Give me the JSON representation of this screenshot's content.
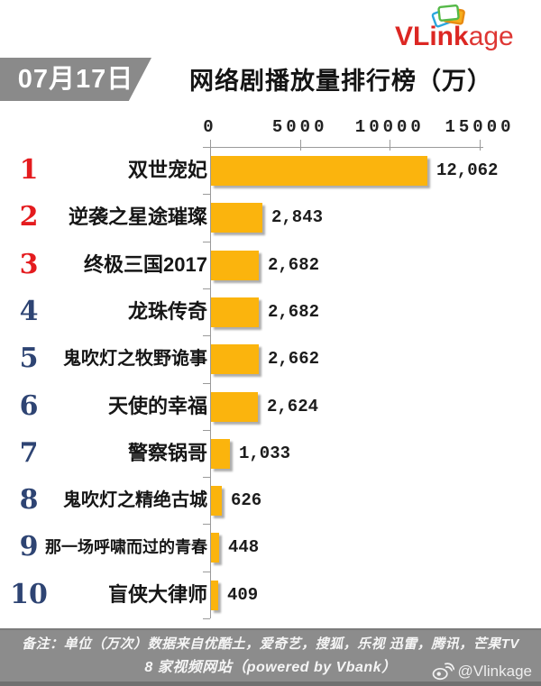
{
  "header": {
    "logo": {
      "brand_bold": "VLink",
      "brand_light": "age",
      "icon": "stacked-cards-icon",
      "brand_color": "#DC2723"
    },
    "date_badge": "07月17日",
    "title": "网络剧播放量排行榜（万）"
  },
  "chart_data": {
    "type": "bar",
    "orientation": "horizontal",
    "title": "网络剧播放量排行榜（万）",
    "date": "07月17日",
    "unit": "万",
    "xlim": [
      0,
      15000
    ],
    "x_ticks": [
      0,
      5000,
      10000,
      15000
    ],
    "grid": false,
    "legend": "none",
    "bar_color": "#FBB40D",
    "rank_color_top3": "#E41B1E",
    "rank_color_rest": "#2E4473",
    "items": [
      {
        "rank": 1,
        "title": "双世宠妃",
        "value": 12062,
        "label": "12,062"
      },
      {
        "rank": 2,
        "title": "逆袭之星途璀璨",
        "value": 2843,
        "label": "2,843"
      },
      {
        "rank": 3,
        "title": "终极三国2017",
        "value": 2682,
        "label": "2,682"
      },
      {
        "rank": 4,
        "title": "龙珠传奇",
        "value": 2682,
        "label": "2,682"
      },
      {
        "rank": 5,
        "title": "鬼吹灯之牧野诡事",
        "value": 2662,
        "label": "2,662"
      },
      {
        "rank": 6,
        "title": "天使的幸福",
        "value": 2624,
        "label": "2,624"
      },
      {
        "rank": 7,
        "title": "警察锅哥",
        "value": 1033,
        "label": "1,033"
      },
      {
        "rank": 8,
        "title": "鬼吹灯之精绝古城",
        "value": 626,
        "label": "626"
      },
      {
        "rank": 9,
        "title": "那一场呼啸而过的青春",
        "value": 448,
        "label": "448"
      },
      {
        "rank": 10,
        "title": "盲侠大律师",
        "value": 409,
        "label": "409"
      }
    ]
  },
  "footer": {
    "note_line1": "备注：单位（万次）数据来自优酷土，爱奇艺，搜狐，乐视 迅雷，腾讯，芒果TV",
    "note_line2": "8 家视频网站（powered by Vbank）",
    "weibo_icon": "weibo-icon",
    "weibo_handle": "@Vlinkage"
  }
}
